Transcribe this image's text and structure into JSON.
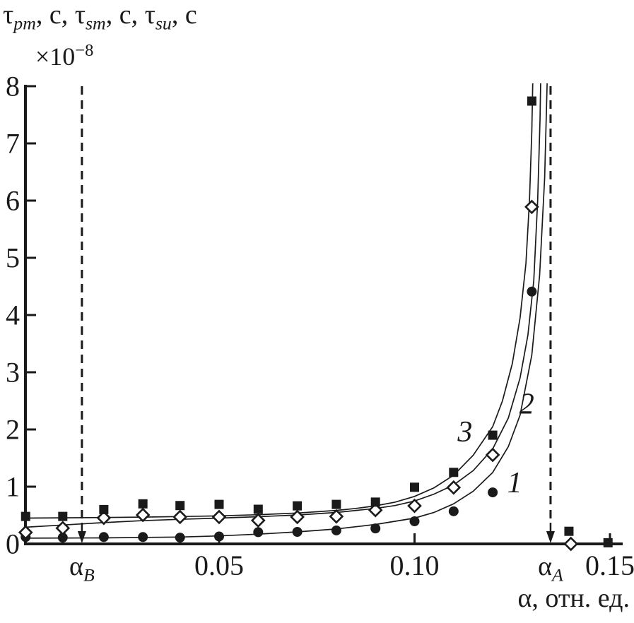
{
  "figure": {
    "ink_color": "#1a1a1a",
    "background_color": "#ffffff",
    "y_axis_title": "τ_{pm}, с, τ_{sm}, с, τ_{su}, с",
    "y_multiplier": "×10^{−8}",
    "x_axis_title": "α, отн. ед."
  },
  "chart_data": {
    "type": "scatter",
    "title": "",
    "xlabel": "α, отн. ед.",
    "ylabel": "τ_pm, с, τ_sm, с, τ_su, с (×10⁻⁸)",
    "xlim": [
      0,
      0.1535
    ],
    "ylim": [
      0,
      8
    ],
    "grid": false,
    "legend_position": "inline-curve-labels",
    "x_axis": {
      "ticks": [
        {
          "value": 0.05,
          "label": "0.05"
        },
        {
          "value": 0.1,
          "label": "0.10"
        },
        {
          "value": 0.15,
          "label": "0.15"
        }
      ]
    },
    "y_axis": {
      "ticks": [
        {
          "value": 0,
          "label": "0"
        },
        {
          "value": 1,
          "label": "1"
        },
        {
          "value": 2,
          "label": "2"
        },
        {
          "value": 3,
          "label": "3"
        },
        {
          "value": 4,
          "label": "4"
        },
        {
          "value": 5,
          "label": "5"
        },
        {
          "value": 6,
          "label": "6"
        },
        {
          "value": 7,
          "label": "7"
        },
        {
          "value": 8,
          "label": "8"
        }
      ]
    },
    "annotations": [
      {
        "name": "alpha-B",
        "type": "dashed-arrow-down",
        "x": 0.0149,
        "label": "α_{B}"
      },
      {
        "name": "alpha-A",
        "type": "dashed-arrow-down",
        "x": 0.1348,
        "label": "α_{A}"
      }
    ],
    "series": [
      {
        "name": "1",
        "marker": "filled-circle",
        "label": "1",
        "label_at": {
          "x": 0.1256,
          "y": 1.06
        },
        "points": [
          [
            0.0005,
            0.12
          ],
          [
            0.01,
            0.11
          ],
          [
            0.0205,
            0.12
          ],
          [
            0.0305,
            0.12
          ],
          [
            0.04,
            0.11
          ],
          [
            0.05,
            0.13
          ],
          [
            0.06,
            0.205
          ],
          [
            0.07,
            0.21
          ],
          [
            0.08,
            0.235
          ],
          [
            0.09,
            0.27
          ],
          [
            0.1,
            0.395
          ],
          [
            0.11,
            0.57
          ],
          [
            0.12,
            0.9
          ],
          [
            0.13,
            4.41
          ]
        ],
        "curve": [
          [
            0.0,
            0.1
          ],
          [
            0.02,
            0.105
          ],
          [
            0.04,
            0.12
          ],
          [
            0.05,
            0.14
          ],
          [
            0.06,
            0.17
          ],
          [
            0.07,
            0.21
          ],
          [
            0.08,
            0.26
          ],
          [
            0.09,
            0.34
          ],
          [
            0.1,
            0.45
          ],
          [
            0.105,
            0.55
          ],
          [
            0.11,
            0.7
          ],
          [
            0.115,
            0.92
          ],
          [
            0.12,
            1.25
          ],
          [
            0.124,
            1.7
          ],
          [
            0.127,
            2.25
          ],
          [
            0.13,
            3.3
          ],
          [
            0.132,
            4.7
          ],
          [
            0.1333,
            6.4
          ],
          [
            0.1339,
            8.0
          ],
          [
            0.1341,
            8.6
          ]
        ]
      },
      {
        "name": "2",
        "marker": "open-diamond",
        "label": "2",
        "label_at": {
          "x": 0.1287,
          "y": 2.44
        },
        "points": [
          [
            0.0005,
            0.2
          ],
          [
            0.01,
            0.275
          ],
          [
            0.0205,
            0.455
          ],
          [
            0.0305,
            0.505
          ],
          [
            0.04,
            0.47
          ],
          [
            0.05,
            0.47
          ],
          [
            0.06,
            0.41
          ],
          [
            0.07,
            0.47
          ],
          [
            0.08,
            0.48
          ],
          [
            0.09,
            0.59
          ],
          [
            0.1,
            0.665
          ],
          [
            0.11,
            0.985
          ],
          [
            0.12,
            1.555
          ],
          [
            0.13,
            5.89
          ],
          [
            0.14,
            0.0
          ]
        ],
        "curve": [
          [
            0.0,
            0.29
          ],
          [
            0.01,
            0.33
          ],
          [
            0.02,
            0.37
          ],
          [
            0.03,
            0.405
          ],
          [
            0.04,
            0.43
          ],
          [
            0.05,
            0.45
          ],
          [
            0.06,
            0.475
          ],
          [
            0.07,
            0.505
          ],
          [
            0.08,
            0.55
          ],
          [
            0.09,
            0.62
          ],
          [
            0.095,
            0.67
          ],
          [
            0.1,
            0.75
          ],
          [
            0.105,
            0.87
          ],
          [
            0.11,
            1.03
          ],
          [
            0.115,
            1.28
          ],
          [
            0.12,
            1.66
          ],
          [
            0.124,
            2.2
          ],
          [
            0.127,
            2.9
          ],
          [
            0.129,
            3.65
          ],
          [
            0.1305,
            4.6
          ],
          [
            0.1315,
            6.0
          ],
          [
            0.1321,
            7.4
          ],
          [
            0.1324,
            8.6
          ]
        ]
      },
      {
        "name": "3",
        "marker": "filled-square",
        "label": "3",
        "label_at": {
          "x": 0.1129,
          "y": 1.95
        },
        "points": [
          [
            0.0005,
            0.48
          ],
          [
            0.01,
            0.48
          ],
          [
            0.0205,
            0.6
          ],
          [
            0.0305,
            0.7
          ],
          [
            0.04,
            0.67
          ],
          [
            0.05,
            0.69
          ],
          [
            0.06,
            0.605
          ],
          [
            0.07,
            0.665
          ],
          [
            0.08,
            0.69
          ],
          [
            0.09,
            0.73
          ],
          [
            0.1,
            0.99
          ],
          [
            0.11,
            1.25
          ],
          [
            0.12,
            1.9
          ],
          [
            0.13,
            7.74
          ],
          [
            0.1395,
            0.22
          ],
          [
            0.1495,
            0.02
          ]
        ],
        "curve": [
          [
            0.0,
            0.45
          ],
          [
            0.01,
            0.455
          ],
          [
            0.02,
            0.46
          ],
          [
            0.03,
            0.468
          ],
          [
            0.04,
            0.478
          ],
          [
            0.05,
            0.49
          ],
          [
            0.06,
            0.51
          ],
          [
            0.07,
            0.54
          ],
          [
            0.08,
            0.585
          ],
          [
            0.085,
            0.62
          ],
          [
            0.09,
            0.665
          ],
          [
            0.095,
            0.73
          ],
          [
            0.1,
            0.83
          ],
          [
            0.105,
            0.98
          ],
          [
            0.11,
            1.2
          ],
          [
            0.115,
            1.55
          ],
          [
            0.12,
            2.05
          ],
          [
            0.1225,
            2.5
          ],
          [
            0.125,
            3.15
          ],
          [
            0.127,
            3.95
          ],
          [
            0.1285,
            4.9
          ],
          [
            0.1294,
            6.0
          ],
          [
            0.13,
            7.2
          ],
          [
            0.1304,
            8.6
          ]
        ]
      }
    ]
  }
}
